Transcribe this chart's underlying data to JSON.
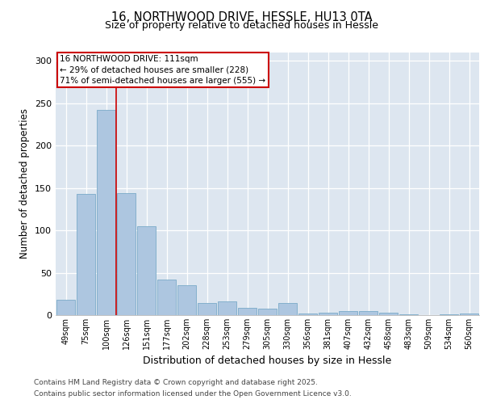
{
  "title1": "16, NORTHWOOD DRIVE, HESSLE, HU13 0TA",
  "title2": "Size of property relative to detached houses in Hessle",
  "xlabel": "Distribution of detached houses by size in Hessle",
  "ylabel": "Number of detached properties",
  "categories": [
    "49sqm",
    "75sqm",
    "100sqm",
    "126sqm",
    "151sqm",
    "177sqm",
    "202sqm",
    "228sqm",
    "253sqm",
    "279sqm",
    "305sqm",
    "330sqm",
    "356sqm",
    "381sqm",
    "407sqm",
    "432sqm",
    "458sqm",
    "483sqm",
    "509sqm",
    "534sqm",
    "560sqm"
  ],
  "values": [
    18,
    143,
    242,
    144,
    105,
    42,
    35,
    14,
    16,
    9,
    8,
    14,
    2,
    3,
    5,
    5,
    3,
    1,
    0,
    1,
    2
  ],
  "bar_color": "#adc6e0",
  "bar_edgecolor": "#7aaac8",
  "annotation_text": "16 NORTHWOOD DRIVE: 111sqm\n← 29% of detached houses are smaller (228)\n71% of semi-detached houses are larger (555) →",
  "vline_color": "#cc0000",
  "vline_pos": 2.5,
  "ylim": [
    0,
    310
  ],
  "yticks": [
    0,
    50,
    100,
    150,
    200,
    250,
    300
  ],
  "background_color": "#dde6f0",
  "footer1": "Contains HM Land Registry data © Crown copyright and database right 2025.",
  "footer2": "Contains public sector information licensed under the Open Government Licence v3.0."
}
